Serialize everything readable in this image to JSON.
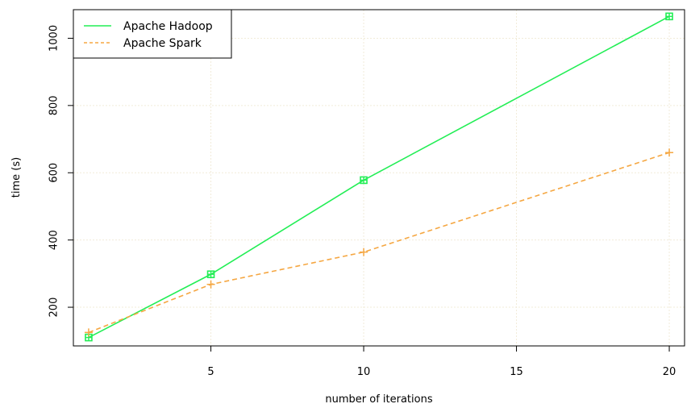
{
  "chart_data": {
    "type": "line",
    "title": "",
    "xlabel": "number of iterations",
    "ylabel": "time (s)",
    "x": [
      1,
      5,
      10,
      20
    ],
    "xlim": [
      0.5,
      20.5
    ],
    "ylim": [
      85,
      1085
    ],
    "x_ticks": [
      "5",
      "10",
      "15",
      "20"
    ],
    "y_ticks": [
      "200",
      "400",
      "600",
      "800",
      "1000"
    ],
    "grid": true,
    "legend_position": "top-left",
    "series": [
      {
        "name": "Apache Hadoop",
        "values": [
          110,
          298,
          578,
          1065
        ],
        "color": "#22ee55",
        "line_style": "solid",
        "marker": "square-cross"
      },
      {
        "name": "Apache Spark",
        "values": [
          125,
          268,
          364,
          660
        ],
        "color": "#f5a742",
        "line_style": "dashed",
        "marker": "plus"
      }
    ]
  }
}
